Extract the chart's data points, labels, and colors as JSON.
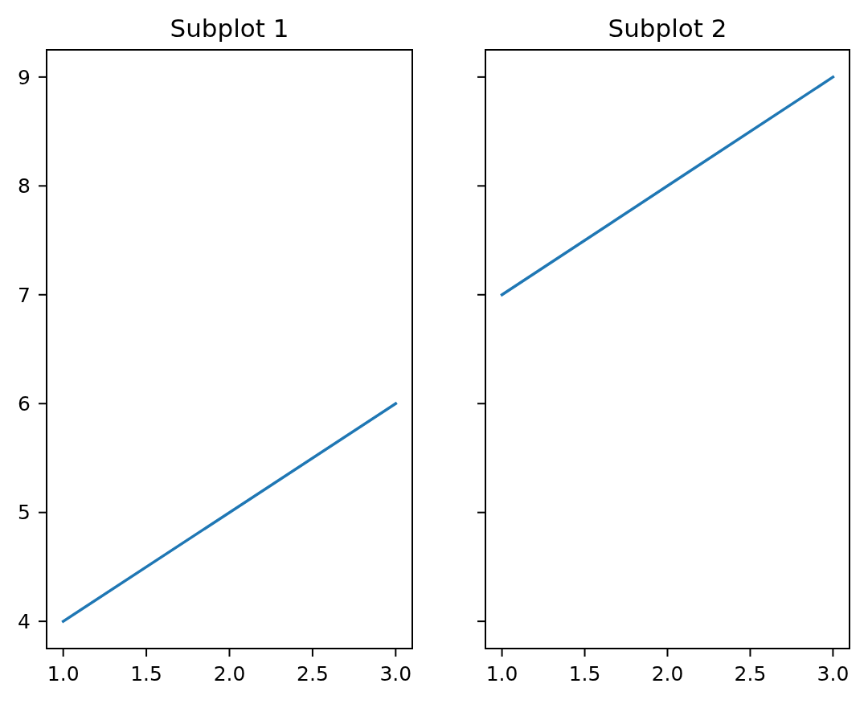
{
  "chart_data": [
    {
      "type": "line",
      "title": "Subplot 1",
      "x": [
        1,
        2,
        3
      ],
      "series": [
        {
          "color": "#1f77b4",
          "values": [
            4,
            5,
            6
          ]
        }
      ],
      "xlim": [
        0.9,
        3.1
      ],
      "ylim": [
        3.75,
        9.25
      ],
      "xticks": [
        {
          "value": 1,
          "label": "1.0"
        },
        {
          "value": 1.5,
          "label": "1.5"
        },
        {
          "value": 2,
          "label": "2.0"
        },
        {
          "value": 2.5,
          "label": "2.5"
        },
        {
          "value": 3,
          "label": "3.0"
        }
      ],
      "yticks": [
        4,
        5,
        6,
        7,
        8,
        9
      ]
    },
    {
      "type": "line",
      "title": "Subplot 2",
      "x": [
        1,
        2,
        3
      ],
      "series": [
        {
          "color": "#1f77b4",
          "values": [
            7,
            8,
            9
          ]
        }
      ],
      "xlim": [
        0.9,
        3.1
      ],
      "ylim": [
        3.75,
        9.25
      ],
      "xticks": [
        {
          "value": 1,
          "label": "1.0"
        },
        {
          "value": 1.5,
          "label": "1.5"
        },
        {
          "value": 2,
          "label": "2.0"
        },
        {
          "value": 2.5,
          "label": "2.5"
        },
        {
          "value": 3,
          "label": "3.0"
        }
      ],
      "yticks": [
        4,
        5,
        6,
        7,
        8,
        9
      ],
      "tick_labels": "x"
    }
  ]
}
